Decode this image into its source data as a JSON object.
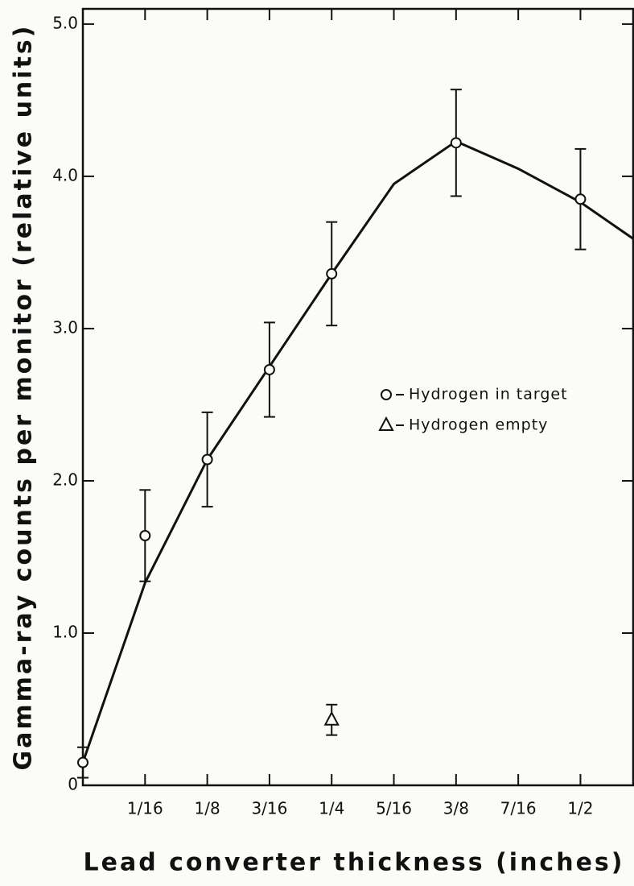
{
  "chart_data": {
    "type": "scatter",
    "xlabel": "Lead converter thickness (inches)",
    "ylabel": "Gamma-ray counts per monitor (relative units)",
    "xlim": [
      0,
      0.553
    ],
    "ylim": [
      0,
      5.1
    ],
    "xticks": [
      {
        "value": 0.0625,
        "label": "1/16"
      },
      {
        "value": 0.125,
        "label": "1/8"
      },
      {
        "value": 0.1875,
        "label": "3/16"
      },
      {
        "value": 0.25,
        "label": "1/4"
      },
      {
        "value": 0.3125,
        "label": "5/16"
      },
      {
        "value": 0.375,
        "label": "3/8"
      },
      {
        "value": 0.4375,
        "label": "7/16"
      },
      {
        "value": 0.5,
        "label": "1/2"
      }
    ],
    "yticks": [
      0,
      {
        "value": 1,
        "label": "1.0"
      },
      {
        "value": 2,
        "label": "2.0"
      },
      {
        "value": 3,
        "label": "3.0"
      },
      {
        "value": 4,
        "label": "4.0"
      },
      {
        "value": 5,
        "label": "5.0"
      }
    ],
    "series": [
      {
        "name": "Hydrogen in target",
        "marker": "circle",
        "color": "#111111",
        "x": [
          0,
          0.0625,
          0.125,
          0.1875,
          0.25,
          0.375,
          0.5
        ],
        "values": [
          0.15,
          1.64,
          2.14,
          2.73,
          3.36,
          4.22,
          3.85
        ],
        "errors": [
          0.1,
          0.3,
          0.31,
          0.31,
          0.34,
          0.35,
          0.33
        ]
      },
      {
        "name": "Hydrogen empty",
        "marker": "triangle",
        "color": "#111111",
        "x": [
          0.25
        ],
        "values": [
          0.43
        ],
        "errors": [
          0.1
        ]
      }
    ],
    "curve": {
      "color": "#111111",
      "x": [
        0,
        0.0625,
        0.125,
        0.1875,
        0.25,
        0.3125,
        0.375,
        0.4375,
        0.5,
        0.553
      ],
      "values": [
        0.15,
        1.33,
        2.14,
        2.75,
        3.36,
        3.95,
        4.23,
        4.05,
        3.83,
        3.59
      ]
    }
  }
}
